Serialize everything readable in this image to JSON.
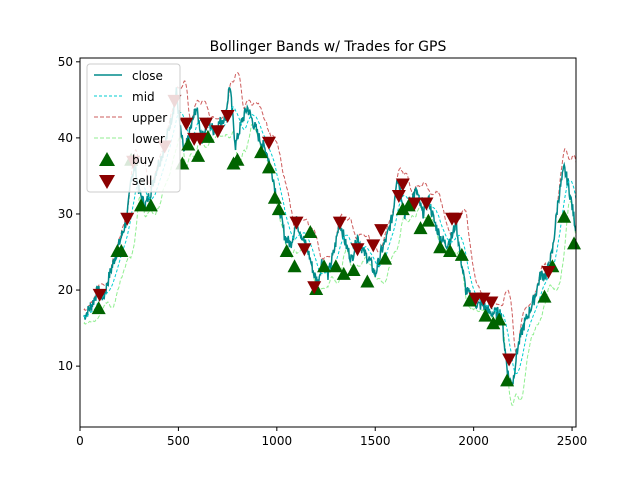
{
  "chart_data": {
    "type": "line",
    "title": "Bollinger Bands w/ Trades for GPS",
    "xlabel": "",
    "ylabel": "",
    "xlim": [
      0,
      2520
    ],
    "ylim": [
      2,
      50.5
    ],
    "x_ticks": [
      0,
      500,
      1000,
      1500,
      2000,
      2500
    ],
    "y_ticks": [
      10,
      20,
      30,
      40,
      50
    ],
    "grid": false,
    "legend_position": "top-left",
    "colors": {
      "close": "#008b8b",
      "mid": "#00ced1",
      "upper": "#cd5c5c",
      "lower": "#90ee90",
      "buy": "#006400",
      "sell": "#8b0000"
    },
    "legend": {
      "close": "close",
      "mid": "mid",
      "upper": "upper",
      "lower": "lower",
      "buy": "buy",
      "sell": "sell"
    },
    "close_key_points": [
      [
        20,
        16.5
      ],
      [
        60,
        18
      ],
      [
        90,
        20
      ],
      [
        120,
        19
      ],
      [
        150,
        22
      ],
      [
        180,
        24.5
      ],
      [
        210,
        27
      ],
      [
        240,
        29.5
      ],
      [
        260,
        35
      ],
      [
        280,
        36
      ],
      [
        300,
        33
      ],
      [
        330,
        31
      ],
      [
        360,
        33
      ],
      [
        390,
        36
      ],
      [
        420,
        38
      ],
      [
        460,
        42
      ],
      [
        490,
        46
      ],
      [
        510,
        41
      ],
      [
        530,
        38
      ],
      [
        560,
        41
      ],
      [
        590,
        44
      ],
      [
        620,
        40
      ],
      [
        650,
        42
      ],
      [
        680,
        41
      ],
      [
        710,
        42
      ],
      [
        740,
        43
      ],
      [
        760,
        47
      ],
      [
        790,
        39
      ],
      [
        820,
        42
      ],
      [
        850,
        44
      ],
      [
        880,
        42
      ],
      [
        910,
        40
      ],
      [
        950,
        38
      ],
      [
        980,
        35
      ],
      [
        1000,
        32
      ],
      [
        1020,
        30
      ],
      [
        1040,
        27
      ],
      [
        1070,
        26
      ],
      [
        1100,
        29
      ],
      [
        1130,
        27
      ],
      [
        1160,
        25
      ],
      [
        1190,
        22
      ],
      [
        1210,
        21
      ],
      [
        1230,
        24
      ],
      [
        1260,
        22
      ],
      [
        1290,
        25
      ],
      [
        1320,
        29
      ],
      [
        1350,
        26
      ],
      [
        1380,
        24
      ],
      [
        1410,
        27
      ],
      [
        1440,
        25
      ],
      [
        1470,
        24
      ],
      [
        1500,
        22
      ],
      [
        1530,
        25
      ],
      [
        1560,
        27
      ],
      [
        1590,
        30
      ],
      [
        1610,
        35
      ],
      [
        1630,
        33
      ],
      [
        1650,
        30
      ],
      [
        1680,
        32
      ],
      [
        1710,
        33
      ],
      [
        1740,
        30
      ],
      [
        1770,
        32
      ],
      [
        1800,
        29
      ],
      [
        1830,
        27
      ],
      [
        1860,
        26
      ],
      [
        1890,
        27
      ],
      [
        1910,
        29
      ],
      [
        1930,
        25
      ],
      [
        1960,
        20
      ],
      [
        1990,
        19
      ],
      [
        2020,
        18
      ],
      [
        2050,
        18
      ],
      [
        2080,
        17
      ],
      [
        2110,
        17
      ],
      [
        2140,
        17
      ],
      [
        2160,
        12
      ],
      [
        2180,
        8
      ],
      [
        2200,
        8
      ],
      [
        2220,
        12
      ],
      [
        2250,
        15
      ],
      [
        2280,
        17
      ],
      [
        2310,
        19
      ],
      [
        2340,
        22
      ],
      [
        2370,
        22
      ],
      [
        2400,
        25
      ],
      [
        2430,
        32
      ],
      [
        2460,
        36
      ],
      [
        2480,
        34
      ],
      [
        2500,
        31
      ],
      [
        2520,
        28
      ]
    ],
    "buy": [
      [
        95,
        17.5
      ],
      [
        190,
        25
      ],
      [
        210,
        25
      ],
      [
        260,
        37
      ],
      [
        310,
        31
      ],
      [
        360,
        31
      ],
      [
        520,
        36.5
      ],
      [
        550,
        39
      ],
      [
        600,
        37.5
      ],
      [
        650,
        40
      ],
      [
        780,
        36.5
      ],
      [
        800,
        37
      ],
      [
        920,
        38
      ],
      [
        960,
        36
      ],
      [
        990,
        32
      ],
      [
        1010,
        30.5
      ],
      [
        1050,
        25
      ],
      [
        1090,
        23
      ],
      [
        1170,
        27.5
      ],
      [
        1200,
        20
      ],
      [
        1240,
        23
      ],
      [
        1300,
        23
      ],
      [
        1340,
        22
      ],
      [
        1390,
        22.5
      ],
      [
        1460,
        21
      ],
      [
        1550,
        24
      ],
      [
        1640,
        30.5
      ],
      [
        1670,
        31
      ],
      [
        1730,
        28
      ],
      [
        1770,
        29
      ],
      [
        1830,
        25.5
      ],
      [
        1880,
        25
      ],
      [
        1940,
        24.5
      ],
      [
        1980,
        18.5
      ],
      [
        2060,
        16.5
      ],
      [
        2100,
        15.5
      ],
      [
        2130,
        16
      ],
      [
        2170,
        8
      ],
      [
        2360,
        19
      ],
      [
        2400,
        23
      ],
      [
        2460,
        29.5
      ],
      [
        2510,
        26
      ]
    ],
    "sell": [
      [
        100,
        19.5
      ],
      [
        240,
        29.5
      ],
      [
        270,
        37
      ],
      [
        430,
        39
      ],
      [
        480,
        45
      ],
      [
        540,
        42
      ],
      [
        580,
        40
      ],
      [
        610,
        40
      ],
      [
        640,
        42
      ],
      [
        700,
        41
      ],
      [
        750,
        43
      ],
      [
        960,
        39.5
      ],
      [
        1100,
        29
      ],
      [
        1140,
        25.5
      ],
      [
        1190,
        20.5
      ],
      [
        1320,
        29
      ],
      [
        1410,
        25.5
      ],
      [
        1490,
        26
      ],
      [
        1530,
        28
      ],
      [
        1620,
        32.5
      ],
      [
        1640,
        34
      ],
      [
        1700,
        31.5
      ],
      [
        1760,
        31.5
      ],
      [
        1890,
        29.5
      ],
      [
        1910,
        29.5
      ],
      [
        2010,
        19
      ],
      [
        2050,
        19
      ],
      [
        2090,
        18.5
      ],
      [
        2180,
        11
      ],
      [
        2380,
        22.5
      ]
    ]
  }
}
